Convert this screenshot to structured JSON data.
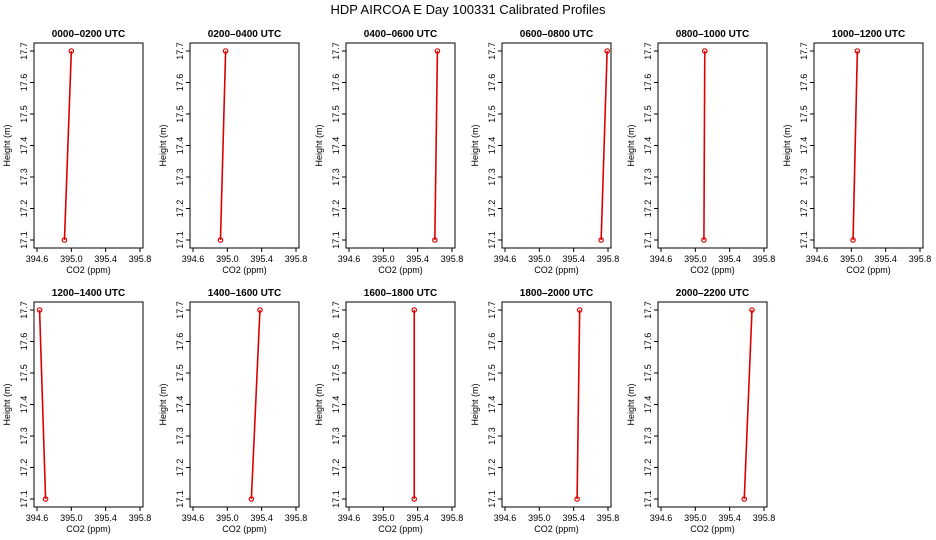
{
  "figure": {
    "title": "HDP AIRCOA E  Day 100331  Calibrated Profiles"
  },
  "axes_common": {
    "xlabel": "CO2 (ppm)",
    "ylabel": "Height (m)",
    "xlim": [
      394.6,
      395.8
    ],
    "ylim": [
      17.1,
      17.7
    ],
    "xticks": [
      "394.6",
      "395.0",
      "395.4",
      "395.8"
    ],
    "yticks": [
      "17.1",
      "17.2",
      "17.3",
      "17.4",
      "17.5",
      "17.6",
      "17.7"
    ],
    "line_color": "#dd0000",
    "marker_color": "#dd0000"
  },
  "chart_data": [
    {
      "type": "line",
      "title": "0000–0200 UTC",
      "x": [
        394.92,
        395.0
      ],
      "y": [
        17.1,
        17.7
      ],
      "xlabel": "CO2 (ppm)",
      "ylabel": "Height (m)",
      "xlim": [
        394.6,
        395.8
      ],
      "ylim": [
        17.1,
        17.7
      ]
    },
    {
      "type": "line",
      "title": "0200–0400 UTC",
      "x": [
        394.92,
        394.98
      ],
      "y": [
        17.1,
        17.7
      ],
      "xlabel": "CO2 (ppm)",
      "ylabel": "Height (m)",
      "xlim": [
        394.6,
        395.8
      ],
      "ylim": [
        17.1,
        17.7
      ]
    },
    {
      "type": "line",
      "title": "0400–0600 UTC",
      "x": [
        395.6,
        395.63
      ],
      "y": [
        17.1,
        17.7
      ],
      "xlabel": "CO2 (ppm)",
      "ylabel": "Height (m)",
      "xlim": [
        394.6,
        395.8
      ],
      "ylim": [
        17.1,
        17.7
      ]
    },
    {
      "type": "line",
      "title": "0600–0800 UTC",
      "x": [
        395.72,
        395.79
      ],
      "y": [
        17.1,
        17.7
      ],
      "xlabel": "CO2 (ppm)",
      "ylabel": "Height (m)",
      "xlim": [
        394.6,
        395.8
      ],
      "ylim": [
        17.1,
        17.7
      ]
    },
    {
      "type": "line",
      "title": "0800–1000 UTC",
      "x": [
        395.1,
        395.11
      ],
      "y": [
        17.1,
        17.7
      ],
      "xlabel": "CO2 (ppm)",
      "ylabel": "Height (m)",
      "xlim": [
        394.6,
        395.8
      ],
      "ylim": [
        17.1,
        17.7
      ]
    },
    {
      "type": "line",
      "title": "1000–1200 UTC",
      "x": [
        395.02,
        395.07
      ],
      "y": [
        17.1,
        17.7
      ],
      "xlabel": "CO2 (ppm)",
      "ylabel": "Height (m)",
      "xlim": [
        394.6,
        395.8
      ],
      "ylim": [
        17.1,
        17.7
      ]
    },
    {
      "type": "line",
      "title": "1200–1400 UTC",
      "x": [
        394.7,
        394.63
      ],
      "y": [
        17.1,
        17.7
      ],
      "xlabel": "CO2 (ppm)",
      "ylabel": "Height (m)",
      "xlim": [
        394.6,
        395.8
      ],
      "ylim": [
        17.1,
        17.7
      ]
    },
    {
      "type": "line",
      "title": "1400–1600 UTC",
      "x": [
        395.28,
        395.38
      ],
      "y": [
        17.1,
        17.7
      ],
      "xlabel": "CO2 (ppm)",
      "ylabel": "Height (m)",
      "xlim": [
        394.6,
        395.8
      ],
      "ylim": [
        17.1,
        17.7
      ]
    },
    {
      "type": "line",
      "title": "1600–1800 UTC",
      "x": [
        395.36,
        395.36
      ],
      "y": [
        17.1,
        17.7
      ],
      "xlabel": "CO2 (ppm)",
      "ylabel": "Height (m)",
      "xlim": [
        394.6,
        395.8
      ],
      "ylim": [
        17.1,
        17.7
      ]
    },
    {
      "type": "line",
      "title": "1800–2000 UTC",
      "x": [
        395.44,
        395.47
      ],
      "y": [
        17.1,
        17.7
      ],
      "xlabel": "CO2 (ppm)",
      "ylabel": "Height (m)",
      "xlim": [
        394.6,
        395.8
      ],
      "ylim": [
        17.1,
        17.7
      ]
    },
    {
      "type": "line",
      "title": "2000–2200 UTC",
      "x": [
        395.57,
        395.66
      ],
      "y": [
        17.1,
        17.7
      ],
      "xlabel": "CO2 (ppm)",
      "ylabel": "Height (m)",
      "xlim": [
        394.6,
        395.8
      ],
      "ylim": [
        17.1,
        17.7
      ]
    }
  ]
}
